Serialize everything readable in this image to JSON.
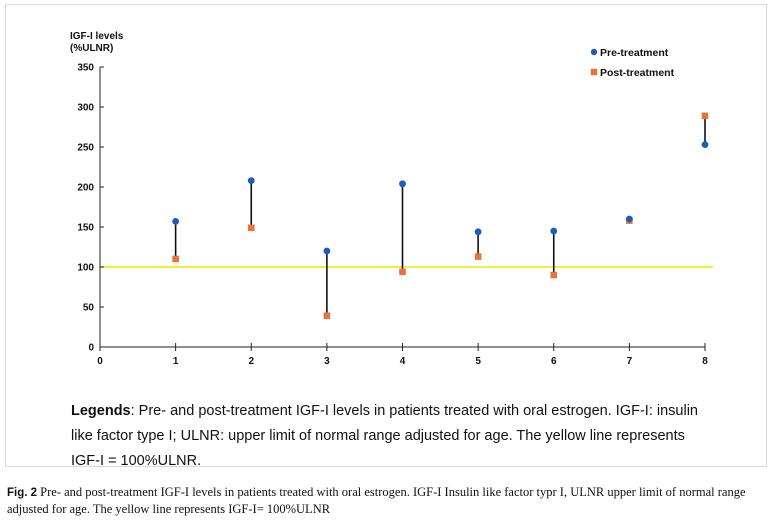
{
  "chart_data": {
    "type": "scatter",
    "ylabel_line1": "IGF-I levels",
    "ylabel_line2": "(%ULNR)",
    "xlim": [
      0,
      8
    ],
    "ylim": [
      0,
      350
    ],
    "xticks": [
      "0",
      "1",
      "2",
      "3",
      "4",
      "5",
      "6",
      "7",
      "8"
    ],
    "yticks": [
      "0",
      "50",
      "100",
      "150",
      "200",
      "250",
      "300",
      "350"
    ],
    "x": [
      1,
      2,
      3,
      4,
      5,
      6,
      7,
      8
    ],
    "series": [
      {
        "name": "Pre-treatment",
        "marker": "circle",
        "color": "#1f5bbf",
        "values": [
          157,
          208,
          120,
          204,
          144,
          145,
          160,
          253
        ]
      },
      {
        "name": "Post-treatment",
        "marker": "square",
        "color": "#e8743b",
        "values": [
          110,
          149,
          39,
          94,
          113,
          90,
          158,
          289
        ]
      }
    ],
    "reference_line": {
      "y": 100,
      "color": "#f2e600"
    },
    "legend_position": "top-right"
  },
  "legend_block": {
    "keyword": "Legends",
    "text": ": Pre- and post-treatment IGF-I levels in patients treated with oral estrogen. IGF-I: insulin like factor type I; ULNR: upper limit of normal range adjusted for age. The yellow line represents IGF-I = 100%ULNR."
  },
  "caption": {
    "label": "Fig. 2",
    "text": "Pre- and post-treatment IGF-I levels in patients treated with oral estrogen. IGF-I Insulin like factor typr I, ULNR upper limit of normal range adjusted for age. The yellow line represents IGF-I= 100%ULNR"
  }
}
